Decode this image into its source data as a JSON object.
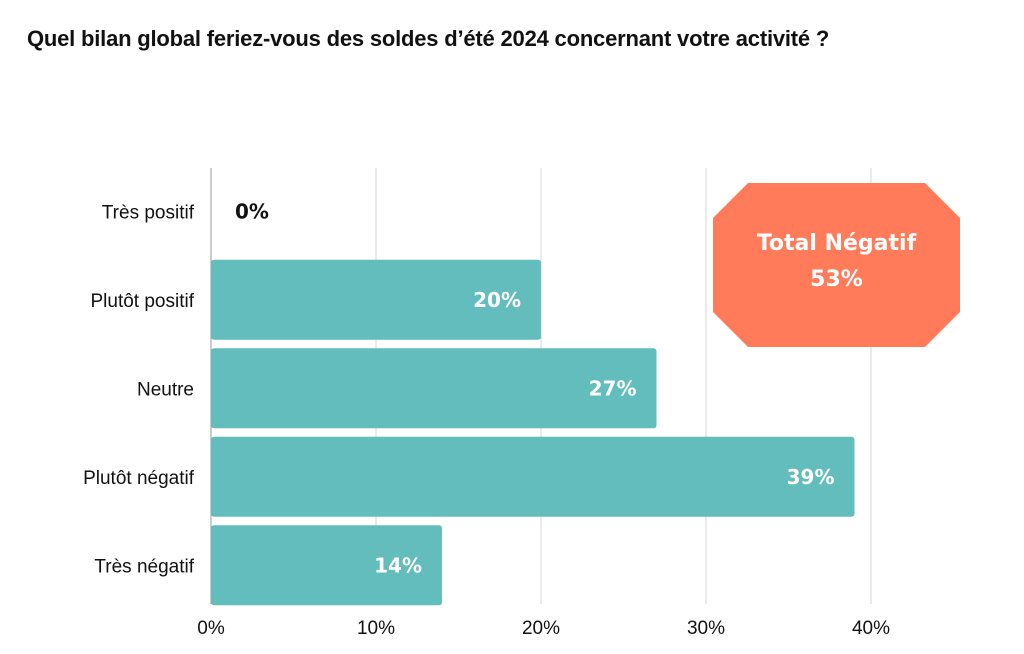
{
  "chart_data": {
    "type": "bar",
    "orientation": "horizontal",
    "title": "Quel bilan global feriez-vous des soldes d’été 2024 concernant votre activité ?",
    "categories": [
      "Très positif",
      "Plutôt positif",
      "Neutre",
      "Plutôt négatif",
      "Très négatif"
    ],
    "values": [
      0,
      20,
      27,
      39,
      14
    ],
    "data_labels": [
      "0%",
      "20%",
      "27%",
      "39%",
      "14%"
    ],
    "xlim": [
      0,
      40
    ],
    "x_ticks": [
      0,
      10,
      20,
      30,
      40
    ],
    "x_tick_labels": [
      "0%",
      "10%",
      "20%",
      "30%",
      "40%"
    ],
    "grid": "vertical",
    "bar_color": "#62BDBC",
    "annotation": {
      "line1": "Total Négatif",
      "line2": "53%",
      "color": "#FF7B59",
      "placement": "top-right"
    }
  }
}
